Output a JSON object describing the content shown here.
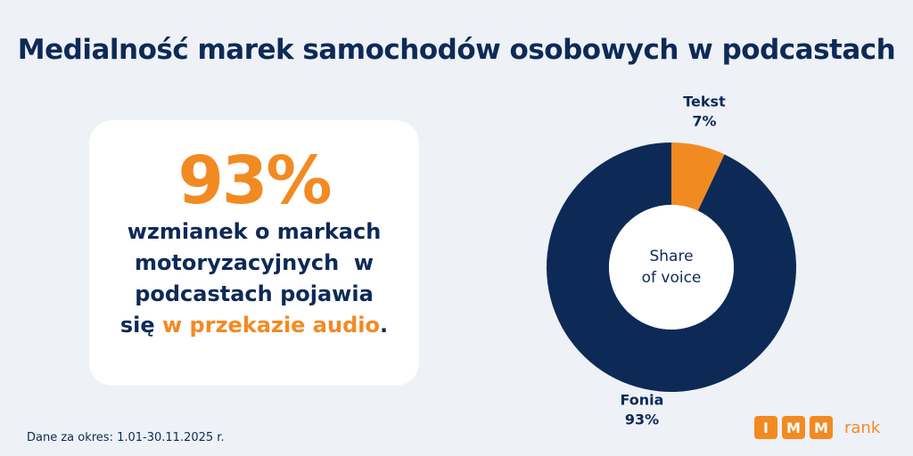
{
  "chart_data": {
    "type": "pie",
    "title": "Medialność marek samochodów osobowych w podcastach",
    "center_label": [
      "Share",
      "of voice"
    ],
    "categories": [
      "Tekst",
      "Fonia"
    ],
    "values": [
      7,
      93
    ],
    "value_labels": [
      "7%",
      "93%"
    ],
    "colors": [
      "#f28a22",
      "#0d2a57"
    ]
  },
  "callout": {
    "highlight": "93%",
    "lines": [
      "wzmianek o markach",
      "motoryzacyjnych  w",
      "podcastach pojawia"
    ],
    "last_line": [
      "się",
      "w przekazie audio",
      "."
    ]
  },
  "footer": "Dane za okres: 1.01-30.11.2025 r.",
  "logo": {
    "letters": [
      "I",
      "M",
      "M"
    ],
    "word": "rank"
  }
}
